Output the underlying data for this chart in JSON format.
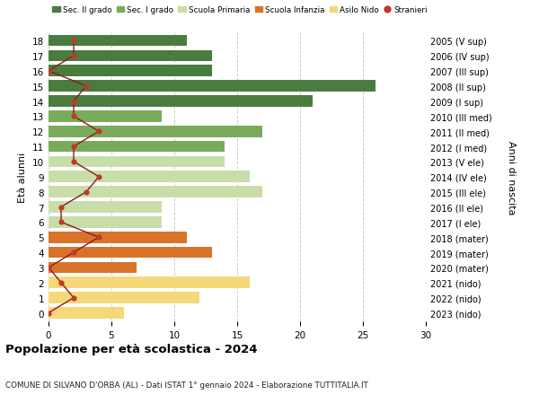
{
  "ages": [
    18,
    17,
    16,
    15,
    14,
    13,
    12,
    11,
    10,
    9,
    8,
    7,
    6,
    5,
    4,
    3,
    2,
    1,
    0
  ],
  "years": [
    "2005 (V sup)",
    "2006 (IV sup)",
    "2007 (III sup)",
    "2008 (II sup)",
    "2009 (I sup)",
    "2010 (III med)",
    "2011 (II med)",
    "2012 (I med)",
    "2013 (V ele)",
    "2014 (IV ele)",
    "2015 (III ele)",
    "2016 (II ele)",
    "2017 (I ele)",
    "2018 (mater)",
    "2019 (mater)",
    "2020 (mater)",
    "2021 (nido)",
    "2022 (nido)",
    "2023 (nido)"
  ],
  "bar_values": [
    11,
    13,
    13,
    26,
    21,
    9,
    17,
    14,
    14,
    16,
    17,
    9,
    9,
    11,
    13,
    7,
    16,
    12,
    6
  ],
  "bar_colors": [
    "#4a7c3f",
    "#4a7c3f",
    "#4a7c3f",
    "#4a7c3f",
    "#4a7c3f",
    "#7aab5a",
    "#7aab5a",
    "#7aab5a",
    "#c8dea8",
    "#c8dea8",
    "#c8dea8",
    "#c8dea8",
    "#c8dea8",
    "#d9732a",
    "#d9732a",
    "#d9732a",
    "#f5d87a",
    "#f5d87a",
    "#f5d87a"
  ],
  "stranieri": [
    2,
    2,
    0,
    3,
    2,
    2,
    4,
    2,
    2,
    4,
    3,
    1,
    1,
    4,
    2,
    0,
    1,
    2,
    0
  ],
  "legend_labels": [
    "Sec. II grado",
    "Sec. I grado",
    "Scuola Primaria",
    "Scuola Infanzia",
    "Asilo Nido",
    "Stranieri"
  ],
  "legend_colors": [
    "#4a7c3f",
    "#7aab5a",
    "#c8dea8",
    "#d9732a",
    "#f5d87a",
    "#c0392b"
  ],
  "ylabel_left": "Età alunni",
  "ylabel_right": "Anni di nascita",
  "title": "Popolazione per età scolastica - 2024",
  "subtitle": "COMUNE DI SILVANO D'ORBA (AL) - Dati ISTAT 1° gennaio 2024 - Elaborazione TUTTITALIA.IT",
  "xlim": [
    0,
    30
  ],
  "xticks": [
    0,
    5,
    10,
    15,
    20,
    25,
    30
  ],
  "background_color": "#ffffff",
  "grid_color": "#cccccc",
  "stranieri_color": "#c0392b",
  "stranieri_line_color": "#8b1a1a",
  "bar_height": 0.75
}
